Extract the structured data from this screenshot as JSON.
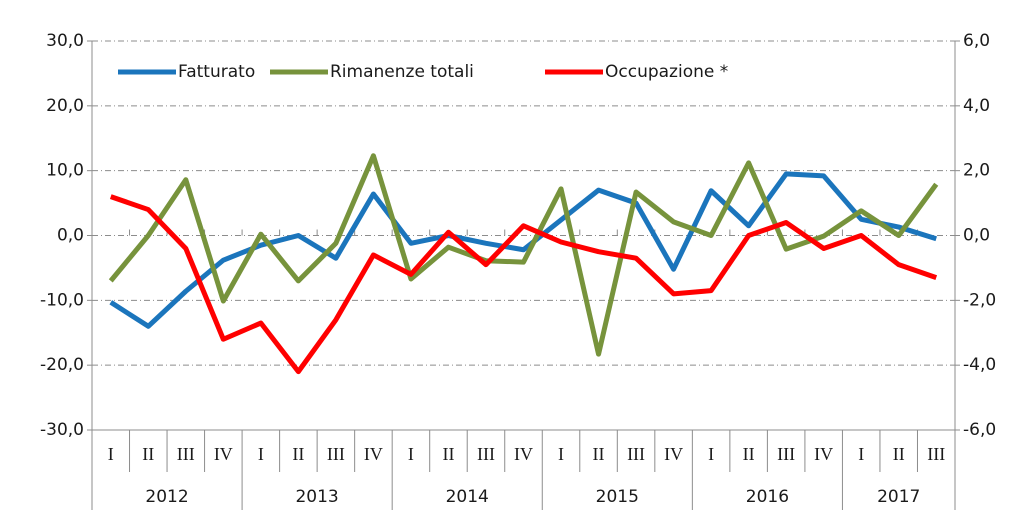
{
  "chart_data": {
    "type": "line",
    "categories": [
      "I",
      "II",
      "III",
      "IV",
      "I",
      "II",
      "III",
      "IV",
      "I",
      "II",
      "III",
      "IV",
      "I",
      "II",
      "III",
      "IV",
      "I",
      "II",
      "III",
      "IV",
      "I",
      "II",
      "III"
    ],
    "years": [
      "2012",
      "2013",
      "2014",
      "2015",
      "2016",
      "2017"
    ],
    "series": [
      {
        "name": "Fatturato",
        "color": "#1b75bc",
        "values": [
          -10.3,
          -14.0,
          -8.6,
          -3.8,
          -1.5,
          0.0,
          -3.5,
          6.4,
          -1.2,
          0.0,
          -1.2,
          -2.2,
          2.4,
          7.0,
          5.0,
          -5.2,
          6.9,
          1.5,
          9.5,
          9.2,
          2.5,
          1.3,
          -0.5
        ]
      },
      {
        "name": "Rimanenze totali",
        "color": "#77933c",
        "values": [
          -7.0,
          0.0,
          8.6,
          -10.1,
          0.2,
          -7.0,
          -1.2,
          12.3,
          -6.7,
          -1.8,
          -3.9,
          -4.1,
          7.2,
          -18.3,
          6.7,
          2.1,
          0.0,
          11.2,
          -2.1,
          -0.1,
          3.8,
          0.0,
          7.9
        ]
      },
      {
        "name": "Occupazione *",
        "color": "#ff0000",
        "axis": "y2",
        "values": [
          1.2,
          0.8,
          -0.4,
          -3.2,
          -2.7,
          -4.2,
          -2.6,
          -0.6,
          -1.2,
          0.1,
          -0.9,
          0.3,
          -0.2,
          -0.5,
          -0.7,
          -1.8,
          -1.7,
          0.0,
          0.4,
          -0.4,
          0.0,
          -0.9,
          -1.3
        ]
      }
    ],
    "ylim": [
      -30,
      30
    ],
    "yticks": [
      {
        "value": -30,
        "label": "-30,0"
      },
      {
        "value": -20,
        "label": "-20,0"
      },
      {
        "value": -10,
        "label": "-10,0"
      },
      {
        "value": 0,
        "label": "0,0"
      },
      {
        "value": 10,
        "label": "10,0"
      },
      {
        "value": 20,
        "label": "20,0"
      },
      {
        "value": 30,
        "label": "30,0"
      }
    ],
    "y2lim": [
      -6,
      6
    ],
    "y2ticks": [
      {
        "value": -6,
        "label": "-6,0"
      },
      {
        "value": -4,
        "label": "-4,0"
      },
      {
        "value": -2,
        "label": "-2,0"
      },
      {
        "value": 0,
        "label": "0,0"
      },
      {
        "value": 2,
        "label": "2,0"
      },
      {
        "value": 4,
        "label": "4,0"
      },
      {
        "value": 6,
        "label": "6,0"
      }
    ],
    "grid": true,
    "legend": "top"
  }
}
